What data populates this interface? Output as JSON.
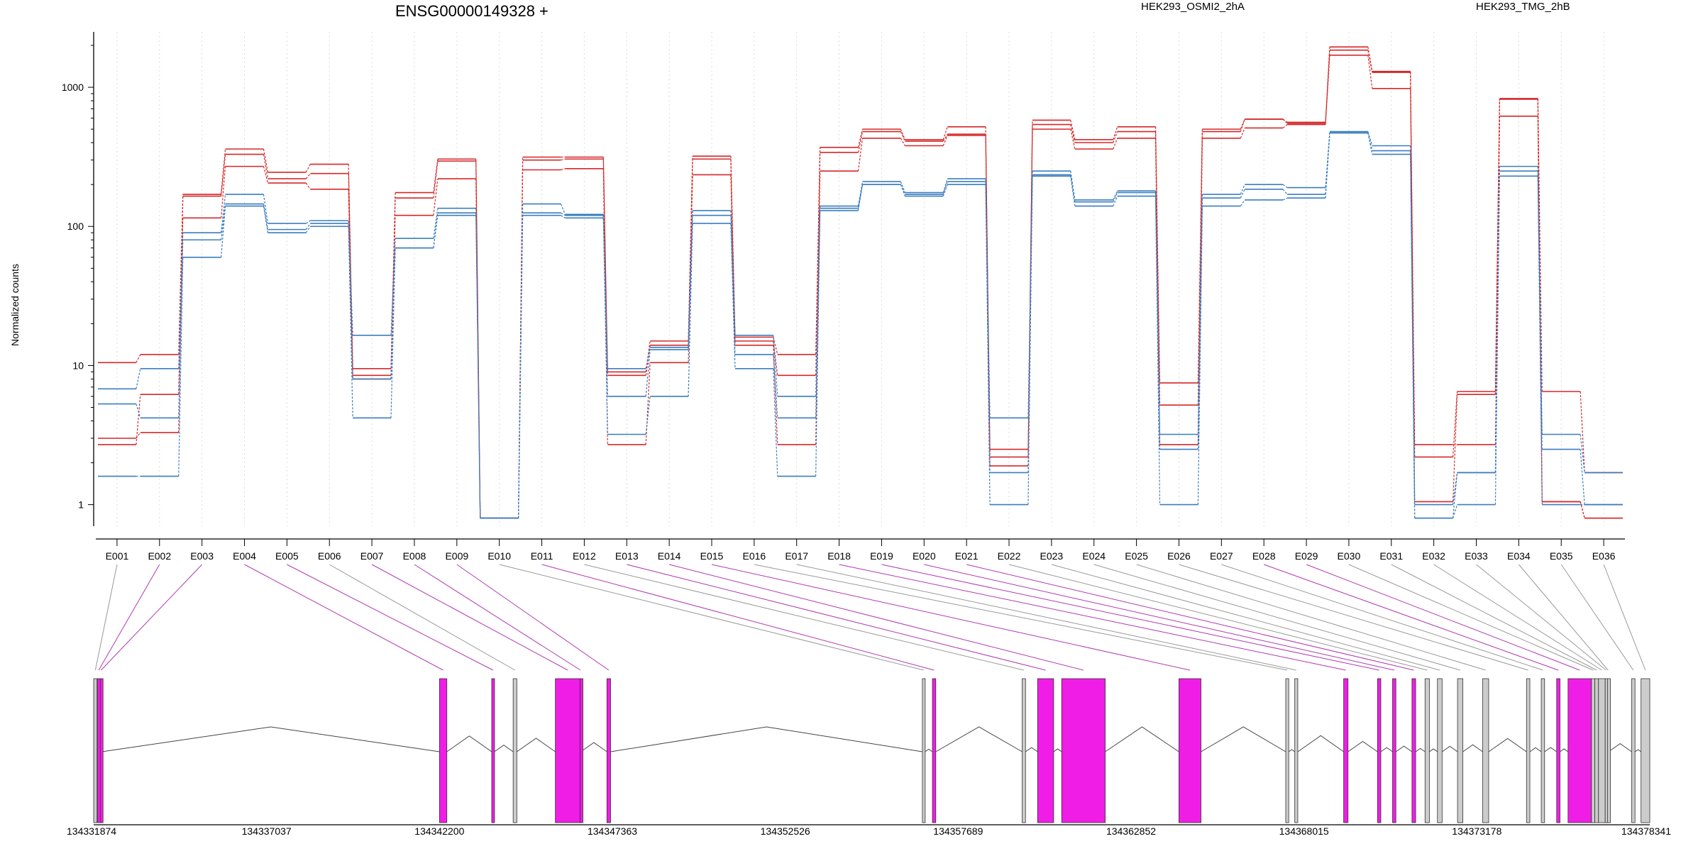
{
  "chart_data": {
    "type": "line",
    "title": "ENSG00000149328 +",
    "ylabel": "Normalized counts",
    "yscale": "log",
    "yticks": [
      "1",
      "10",
      "100",
      "1000"
    ],
    "ylim": [
      0.7,
      2500
    ],
    "grid": "vertical dotted lines at each exon",
    "legend": [
      {
        "name": "HEK293_OSMI2_2hA",
        "color": "#d62728"
      },
      {
        "name": "HEK293_TMG_2hB",
        "color": "#3a7dbf"
      }
    ],
    "categories": [
      "E001",
      "E002",
      "E003",
      "E004",
      "E005",
      "E006",
      "E007",
      "E008",
      "E009",
      "E010",
      "E011",
      "E012",
      "E013",
      "E014",
      "E015",
      "E016",
      "E017",
      "E018",
      "E019",
      "E020",
      "E021",
      "E022",
      "E023",
      "E024",
      "E025",
      "E026",
      "E027",
      "E028",
      "E029",
      "E030",
      "E031",
      "E032",
      "E033",
      "E034",
      "E035",
      "E036"
    ],
    "series": [
      {
        "name": "HEK293_OSMI2_2hA",
        "color": "#d62728",
        "values": [
          10.5,
          12,
          170,
          360,
          245,
          280,
          9.5,
          175,
          305,
          0.8,
          315,
          315,
          9,
          15,
          320,
          16,
          12,
          370,
          500,
          420,
          520,
          2.2,
          580,
          420,
          520,
          7.5,
          500,
          590,
          550,
          1950,
          1300,
          2.2,
          6.5,
          830,
          6.5,
          1.7
        ]
      },
      {
        "name": "HEK293_OSMI2_2hA",
        "color": "#d62728",
        "values": [
          3.0,
          3.3,
          165,
          330,
          220,
          240,
          8.5,
          160,
          295,
          0.8,
          300,
          305,
          8.5,
          14,
          305,
          15,
          8.5,
          340,
          480,
          410,
          460,
          1.9,
          540,
          400,
          480,
          5.2,
          480,
          590,
          560,
          1850,
          1280,
          1.05,
          6.2,
          820,
          1.05,
          0.8
        ]
      },
      {
        "name": "HEK293_OSMI2_2hA",
        "color": "#d62728",
        "values": [
          2.7,
          6.2,
          115,
          270,
          205,
          185,
          8.0,
          120,
          220,
          0.8,
          255,
          260,
          2.7,
          10.5,
          235,
          14,
          2.7,
          250,
          430,
          380,
          450,
          2.5,
          500,
          360,
          430,
          2.7,
          430,
          510,
          540,
          1700,
          980,
          2.7,
          2.7,
          620,
          1.05,
          0.8
        ]
      },
      {
        "name": "HEK293_TMG_2hB",
        "color": "#3a7dbf",
        "values": [
          6.8,
          9.5,
          90,
          170,
          105,
          110,
          16.5,
          82,
          135,
          0.8,
          145,
          122,
          9.5,
          13.5,
          130,
          16.5,
          6.0,
          140,
          210,
          175,
          220,
          4.2,
          250,
          155,
          180,
          3.2,
          170,
          200,
          190,
          480,
          380,
          1.0,
          1.7,
          270,
          3.2,
          1.7
        ]
      },
      {
        "name": "HEK293_TMG_2hB",
        "color": "#3a7dbf",
        "values": [
          5.3,
          4.2,
          80,
          145,
          95,
          105,
          8.0,
          70,
          125,
          0.8,
          125,
          120,
          6.0,
          13,
          120,
          12,
          4.2,
          135,
          200,
          170,
          210,
          1.7,
          235,
          150,
          175,
          2.5,
          160,
          185,
          170,
          470,
          350,
          0.8,
          1.7,
          250,
          2.5,
          1.0
        ]
      },
      {
        "name": "HEK293_TMG_2hB",
        "color": "#3a7dbf",
        "values": [
          1.6,
          1.6,
          60,
          140,
          90,
          100,
          4.2,
          70,
          120,
          0.8,
          120,
          115,
          3.2,
          6.0,
          105,
          9.5,
          1.6,
          130,
          200,
          165,
          200,
          1.0,
          230,
          140,
          165,
          1.0,
          140,
          155,
          160,
          470,
          330,
          0.8,
          1.0,
          230,
          1.0,
          1.0
        ]
      }
    ],
    "gene_model": {
      "coordinate_ticks": [
        "134331874",
        "134337037",
        "134342200",
        "134347363",
        "134352526",
        "134357689",
        "134362852",
        "134368015",
        "134373178",
        "134378341"
      ],
      "coordinate_values": [
        134331874,
        134337037,
        134342200,
        134347363,
        134352526,
        134357689,
        134362852,
        134368015,
        134373178,
        134378341
      ],
      "highlight_color": "#f01de6",
      "default_color": "#cccccc",
      "exons": [
        {
          "id": "E001",
          "start": 134331874,
          "end": 134331974,
          "highlight": false
        },
        {
          "id": "E002",
          "start": 134331990,
          "end": 134332060,
          "highlight": true
        },
        {
          "id": "E003",
          "start": 134332070,
          "end": 134332120,
          "highlight": true
        },
        {
          "id": "E004",
          "start": 134342200,
          "end": 134342420,
          "highlight": true
        },
        {
          "id": "E005",
          "start": 134343760,
          "end": 134343840,
          "highlight": true
        },
        {
          "id": "E006",
          "start": 134344400,
          "end": 134344510,
          "highlight": false
        },
        {
          "id": "E007",
          "start": 134345660,
          "end": 134346400,
          "highlight": true
        },
        {
          "id": "E008",
          "start": 134346400,
          "end": 134346420,
          "highlight": true
        },
        {
          "id": "E009",
          "start": 134347200,
          "end": 134347310,
          "highlight": true
        },
        {
          "id": "E010",
          "start": 134356620,
          "end": 134356700,
          "highlight": false
        },
        {
          "id": "E011",
          "start": 134356920,
          "end": 134357020,
          "highlight": true
        },
        {
          "id": "E012",
          "start": 134359600,
          "end": 134359700,
          "highlight": false
        },
        {
          "id": "E013",
          "start": 134360060,
          "end": 134360540,
          "highlight": true
        },
        {
          "id": "E014",
          "start": 134360780,
          "end": 134362080,
          "highlight": true
        },
        {
          "id": "E015",
          "start": 134364280,
          "end": 134364940,
          "highlight": true
        },
        {
          "id": "E016",
          "start": 134367470,
          "end": 134367560,
          "highlight": false
        },
        {
          "id": "E017",
          "start": 134367740,
          "end": 134367830,
          "highlight": false
        },
        {
          "id": "E018",
          "start": 134369200,
          "end": 134369330,
          "highlight": true
        },
        {
          "id": "E019",
          "start": 134370210,
          "end": 134370310,
          "highlight": true
        },
        {
          "id": "E020",
          "start": 134370660,
          "end": 134370760,
          "highlight": true
        },
        {
          "id": "E021",
          "start": 134371240,
          "end": 134371350,
          "highlight": true
        },
        {
          "id": "E022",
          "start": 134371630,
          "end": 134371760,
          "highlight": false
        },
        {
          "id": "E023",
          "start": 134372000,
          "end": 134372140,
          "highlight": false
        },
        {
          "id": "E024",
          "start": 134372600,
          "end": 134372760,
          "highlight": false
        },
        {
          "id": "E025",
          "start": 134373350,
          "end": 134373530,
          "highlight": false
        },
        {
          "id": "E026",
          "start": 134374660,
          "end": 134374760,
          "highlight": false
        },
        {
          "id": "E027",
          "start": 134375100,
          "end": 134375200,
          "highlight": false
        },
        {
          "id": "E028",
          "start": 134375560,
          "end": 134375660,
          "highlight": true
        },
        {
          "id": "E029",
          "start": 134375900,
          "end": 134376600,
          "highlight": true
        },
        {
          "id": "E030",
          "start": 134376600,
          "end": 134376700,
          "highlight": false
        },
        {
          "id": "E031",
          "start": 134376700,
          "end": 134376810,
          "highlight": false
        },
        {
          "id": "E032",
          "start": 134376810,
          "end": 134377010,
          "highlight": false
        },
        {
          "id": "E033",
          "start": 134377010,
          "end": 134377060,
          "highlight": false
        },
        {
          "id": "E034",
          "start": 134377080,
          "end": 134377110,
          "highlight": false
        },
        {
          "id": "E035",
          "start": 134377800,
          "end": 134377900,
          "highlight": false
        },
        {
          "id": "E036",
          "start": 134378080,
          "end": 134378341,
          "highlight": false
        }
      ]
    }
  }
}
